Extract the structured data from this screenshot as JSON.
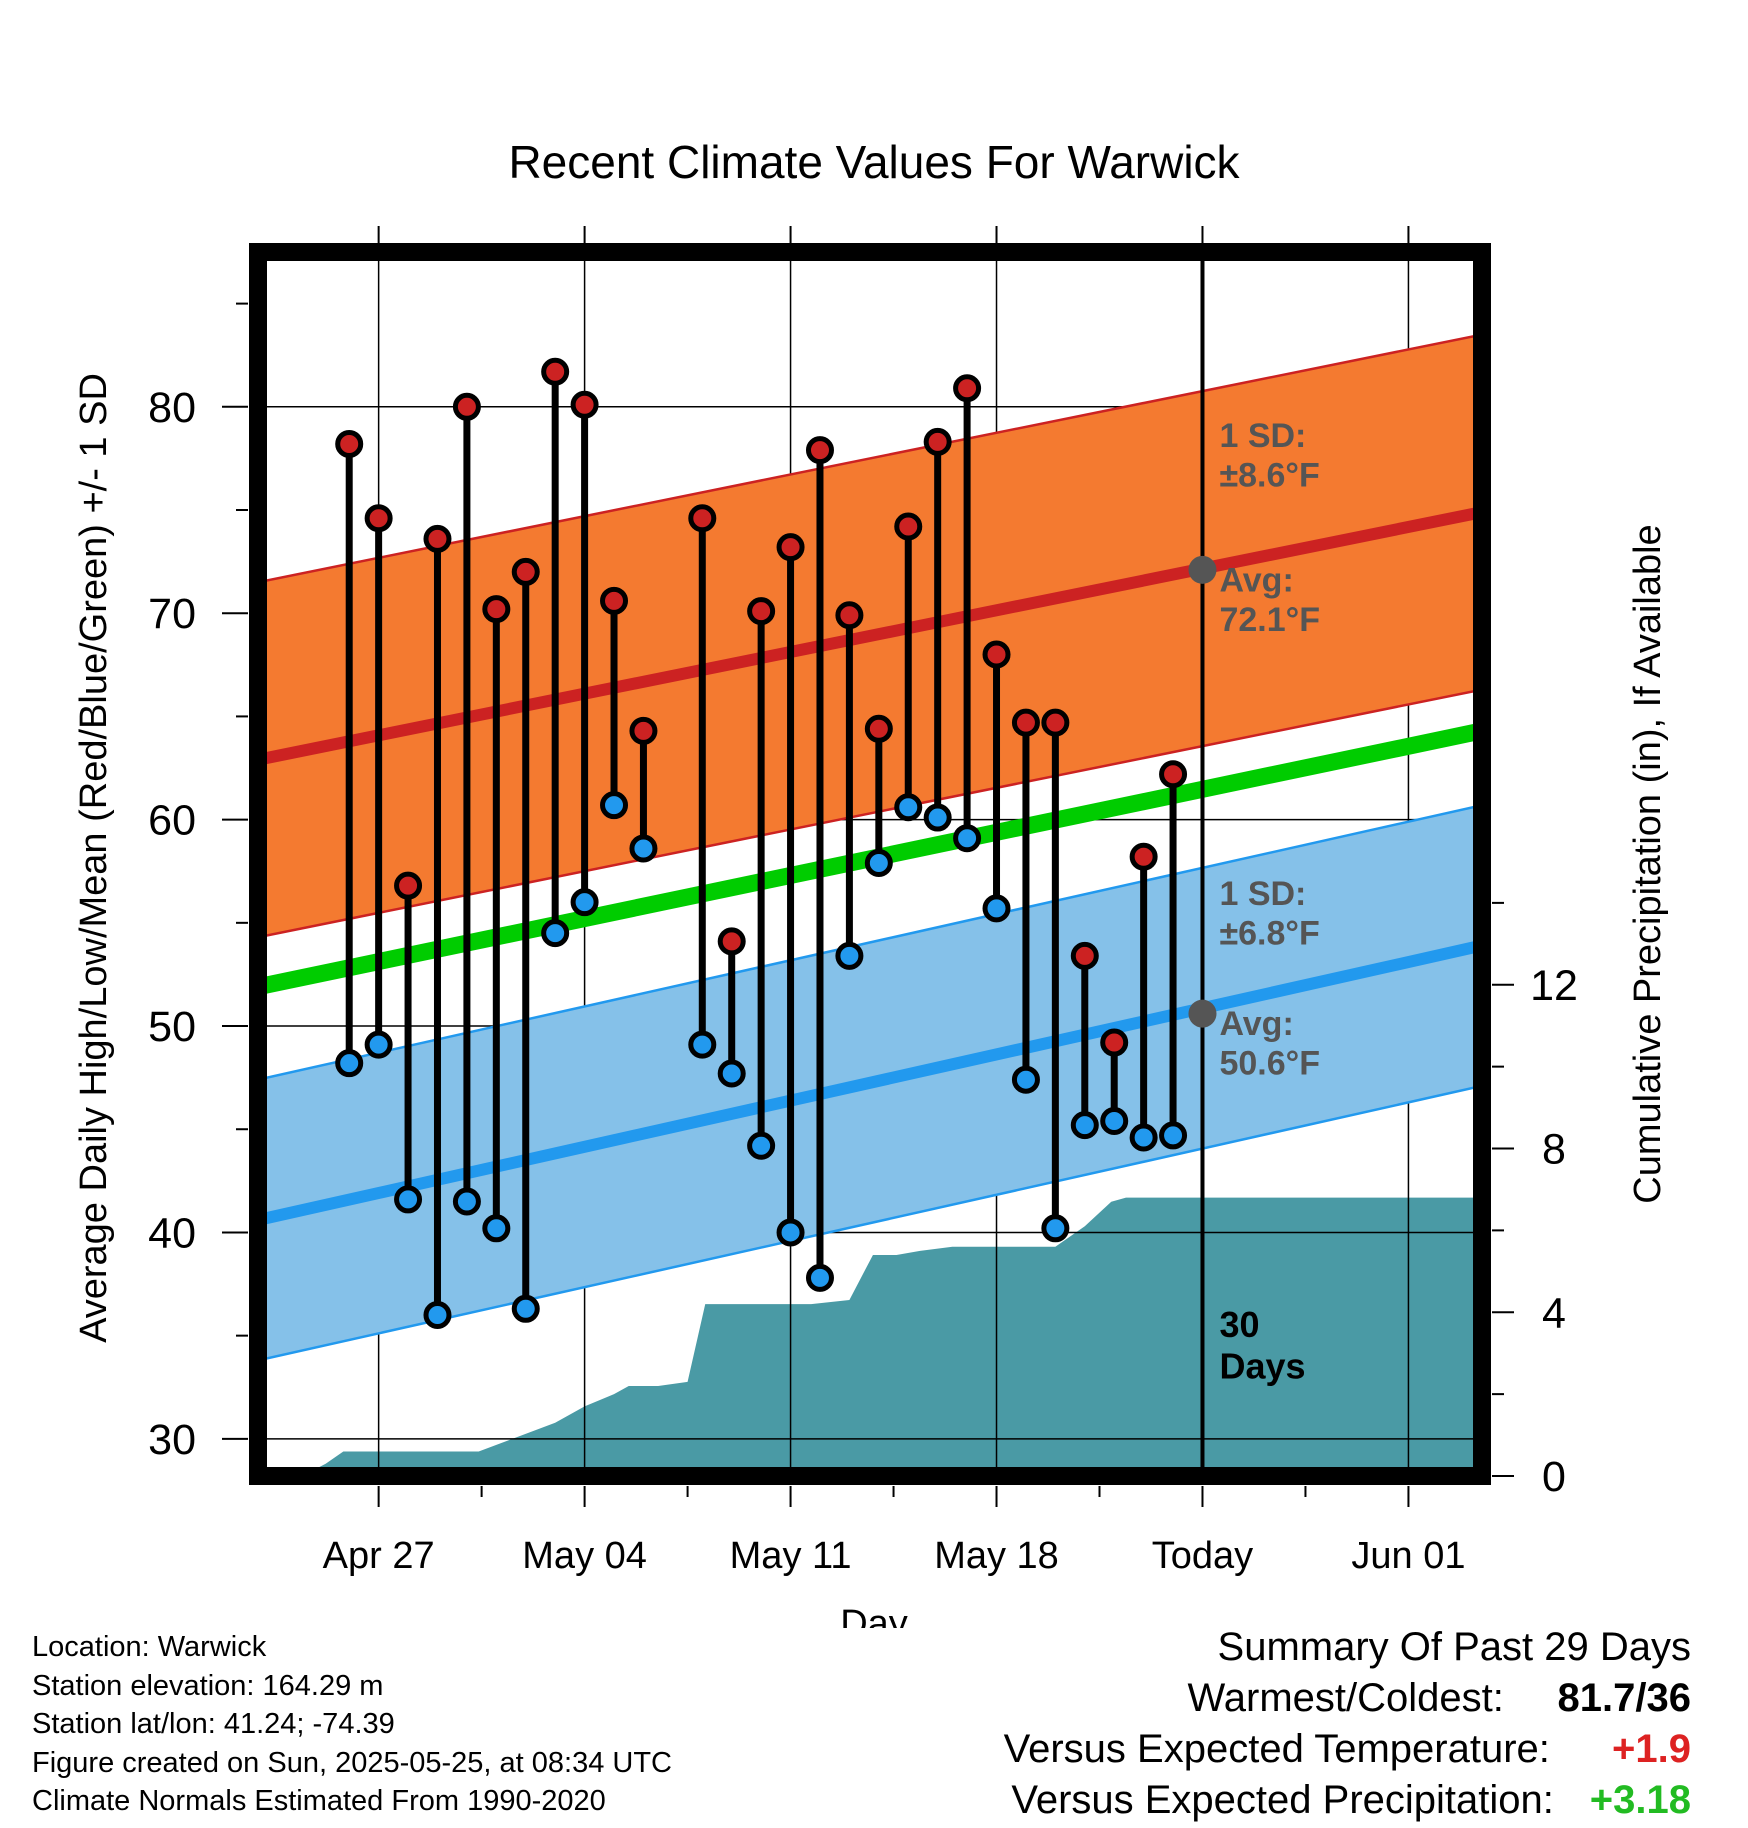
{
  "chart_data": {
    "type": "line",
    "title": "Recent Climate Values For Warwick",
    "xlabel": "Day",
    "ylabel": "Average Daily High/Low/Mean (Red/Blue/Green) +/- 1 SD",
    "y2label": "Cumulative Precipitation (in), If Available",
    "x_domain_days": [
      -32.1,
      9.5
    ],
    "x_ticks": [
      {
        "day": -28,
        "label": "Apr 27"
      },
      {
        "day": -21,
        "label": "May 04"
      },
      {
        "day": -14,
        "label": "May 11"
      },
      {
        "day": -7,
        "label": "May 18"
      },
      {
        "day": 0,
        "label": "Today"
      },
      {
        "day": 7,
        "label": "Jun 01"
      }
    ],
    "ylim": [
      28.2,
      87.5
    ],
    "y_ticks": [
      30,
      40,
      50,
      60,
      70,
      80
    ],
    "y2lim": [
      0,
      29.9
    ],
    "y2_ticks": [
      0,
      4,
      8,
      12
    ],
    "grid": true,
    "today_label": "30\nDays",
    "colors": {
      "high": "#cc2222",
      "low": "#2299ee",
      "mean": "#00cc00",
      "high_band": "#f47a30",
      "low_band": "#85c1e9",
      "precip": "#4a9aa5",
      "marker_avg": "#555555"
    },
    "normal_high": {
      "avg_start": 62.9,
      "avg_end": 74.9,
      "sd": 8.6
    },
    "normal_low": {
      "avg_start": 40.6,
      "avg_end": 53.9,
      "sd": 6.8
    },
    "normal_mean": {
      "start": 51.9,
      "end": 64.3
    },
    "today_normals": {
      "high_avg": 72.1,
      "low_avg": 50.6
    },
    "annotations": {
      "high_sd": "1 SD:\n±8.6°F",
      "high_avg": "Avg:\n72.1°F",
      "low_sd": "1 SD:\n±6.8°F",
      "low_avg": "Avg:\n50.6°F"
    },
    "series": [
      {
        "name": "High",
        "days": [
          -29,
          -28,
          -27,
          -26,
          -25,
          -24,
          -23,
          -22,
          -21,
          -20,
          -19,
          -17,
          -16,
          -15,
          -14,
          -13,
          -12,
          -11,
          -10,
          -9,
          -8,
          -7,
          -6,
          -5,
          -4,
          -3,
          -2,
          -1
        ],
        "values": [
          78.2,
          74.6,
          56.8,
          73.6,
          80.0,
          70.2,
          72.0,
          81.7,
          80.1,
          70.6,
          64.3,
          74.6,
          54.1,
          70.1,
          73.2,
          77.9,
          69.9,
          64.4,
          74.2,
          78.3,
          80.9,
          68.0,
          64.7,
          64.7,
          53.4,
          49.2,
          58.2,
          62.2
        ]
      },
      {
        "name": "Low",
        "days": [
          -29,
          -28,
          -27,
          -26,
          -25,
          -24,
          -23,
          -22,
          -21,
          -20,
          -19,
          -17,
          -16,
          -15,
          -14,
          -13,
          -12,
          -11,
          -10,
          -9,
          -8,
          -7,
          -6,
          -5,
          -4,
          -3,
          -2,
          -1
        ],
        "values": [
          48.2,
          49.1,
          41.6,
          36.0,
          41.5,
          40.2,
          36.3,
          54.5,
          56.0,
          60.7,
          58.6,
          49.1,
          47.7,
          44.2,
          40.0,
          37.8,
          53.4,
          57.9,
          60.6,
          60.1,
          59.1,
          55.7,
          47.4,
          40.2,
          45.2,
          45.4,
          44.6,
          44.7
        ]
      },
      {
        "name": "Cumulative Precipitation",
        "x": [
          -30.6,
          -29.8,
          -29.2,
          -24.6,
          -22.0,
          -21.0,
          -20.0,
          -19.5,
          -18.5,
          -17.5,
          -16.9,
          -16.0,
          -14.3,
          -13.3,
          -12.0,
          -11.2,
          -10.4,
          -9.6,
          -8.5,
          -5.6,
          -5.0,
          -4.0,
          -3.1,
          -2.6,
          0,
          9.5
        ],
        "values": [
          0,
          0.3,
          0.6,
          0.6,
          1.3,
          1.7,
          2.0,
          2.2,
          2.2,
          2.3,
          4.2,
          4.2,
          4.2,
          4.2,
          4.3,
          5.4,
          5.4,
          5.5,
          5.6,
          5.6,
          5.6,
          6.1,
          6.7,
          6.8,
          6.8,
          6.8
        ]
      }
    ]
  },
  "footer": {
    "location": "Location: Warwick",
    "elevation": "Station elevation: 164.29 m",
    "latlon": "Station lat/lon: 41.24; -74.39",
    "created": "Figure created on Sun, 2025-05-25, at 08:34 UTC",
    "normals": "Climate Normals Estimated From 1990-2020"
  },
  "summary": {
    "title": "Summary Of Past 29 Days",
    "warm_cold_label": "Warmest/Coldest:",
    "warm_cold_value": "81.7/36",
    "temp_label": "Versus Expected Temperature:",
    "temp_value": "+1.9",
    "temp_color": "#dd2222",
    "precip_label": "Versus Expected Precipitation:",
    "precip_value": "+3.18",
    "precip_color": "#22bb22"
  }
}
